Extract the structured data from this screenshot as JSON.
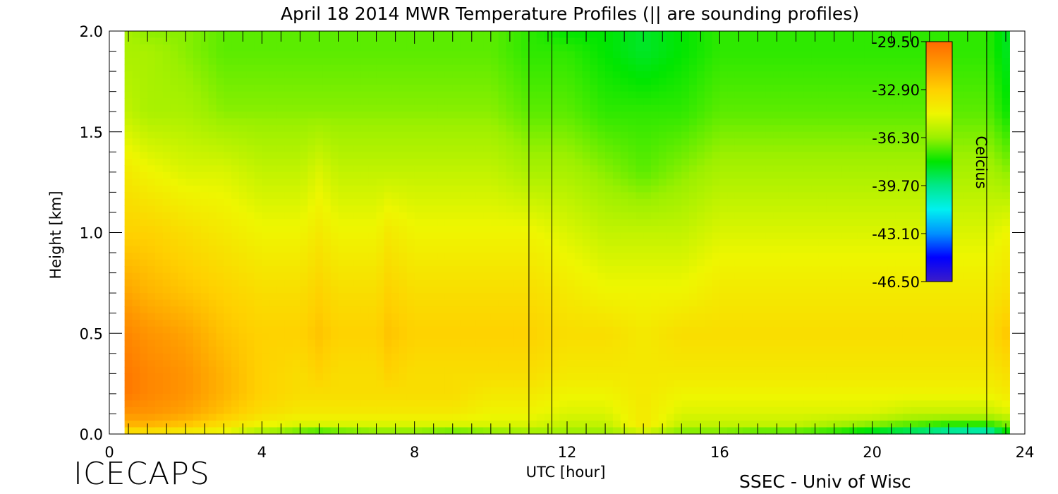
{
  "chart_data": {
    "type": "heatmap",
    "title": "April 18 2014 MWR Temperature Profiles (|| are sounding profiles)",
    "xlabel": "UTC [hour]",
    "ylabel": "Height [km]",
    "xlim": [
      0,
      24
    ],
    "ylim": [
      0,
      2
    ],
    "x_ticks": [
      0,
      4,
      8,
      12,
      16,
      20,
      24
    ],
    "y_ticks": [
      0.0,
      0.5,
      1.0,
      1.5,
      2.0
    ],
    "y_tick_labels": [
      "0.0",
      "0.5",
      "1.0",
      "1.5",
      "2.0"
    ],
    "data_x_range": [
      0.4,
      23.6
    ],
    "sounding_profiles_utc": [
      11.0,
      11.6,
      23.0
    ],
    "colorbar": {
      "label": "Celcius",
      "min": -46.5,
      "max": -29.5,
      "tick_labels": [
        "-29.50",
        "-32.90",
        "-36.30",
        "-39.70",
        "-43.10",
        "-46.50"
      ],
      "tick_values": [
        -29.5,
        -32.9,
        -36.3,
        -39.7,
        -43.1,
        -46.5
      ],
      "colors": [
        "#3c1cc8",
        "#0000ff",
        "#0090ff",
        "#00f0f0",
        "#00e88a",
        "#00e600",
        "#9bf000",
        "#eef600",
        "#ffd000",
        "#ff9a00",
        "#ff6a00"
      ]
    },
    "temperature_grid": {
      "x_utc": [
        0.4,
        1.0,
        2.0,
        3.0,
        4.0,
        5.0,
        5.5,
        6.0,
        7.0,
        7.3,
        8.0,
        9.0,
        10.0,
        11.0,
        12.0,
        13.0,
        14.0,
        15.0,
        16.0,
        17.0,
        18.0,
        19.0,
        20.0,
        21.0,
        22.0,
        23.0,
        23.6
      ],
      "heights_km": [
        0.0,
        0.05,
        0.1,
        0.2,
        0.3,
        0.5,
        0.7,
        1.0,
        1.3,
        1.6,
        1.9,
        2.0
      ],
      "values_celsius": [
        [
          -34.0,
          -34.0,
          -34.5,
          -35.0,
          -36.5,
          -37.5,
          -38.0,
          -37.5,
          -37.0,
          -37.0,
          -37.0,
          -37.5,
          -37.0,
          -36.5,
          -36.5,
          -36.5,
          -35.5,
          -37.0,
          -37.0,
          -37.5,
          -37.5,
          -38.0,
          -39.0,
          -40.0,
          -41.0,
          -41.5,
          -38.0
        ],
        [
          -32.0,
          -32.0,
          -32.5,
          -33.5,
          -34.5,
          -35.0,
          -35.0,
          -35.0,
          -35.0,
          -35.0,
          -35.0,
          -35.0,
          -35.0,
          -35.0,
          -35.5,
          -35.5,
          -34.0,
          -35.5,
          -35.5,
          -35.5,
          -35.5,
          -36.0,
          -36.5,
          -37.0,
          -37.5,
          -37.5,
          -36.5
        ],
        [
          -31.0,
          -31.0,
          -31.5,
          -32.5,
          -33.5,
          -34.0,
          -34.0,
          -34.0,
          -34.0,
          -34.0,
          -34.0,
          -34.0,
          -34.5,
          -34.5,
          -35.0,
          -35.0,
          -34.0,
          -35.0,
          -35.0,
          -35.0,
          -35.0,
          -35.0,
          -35.0,
          -35.5,
          -35.5,
          -35.5,
          -35.0
        ],
        [
          -30.0,
          -30.5,
          -31.0,
          -32.0,
          -33.0,
          -33.5,
          -33.5,
          -33.5,
          -33.5,
          -33.5,
          -33.5,
          -33.5,
          -34.0,
          -34.0,
          -34.5,
          -34.5,
          -34.0,
          -34.5,
          -34.5,
          -34.5,
          -34.5,
          -34.5,
          -34.5,
          -34.5,
          -34.5,
          -34.5,
          -34.0
        ],
        [
          -30.0,
          -30.5,
          -31.0,
          -32.0,
          -33.0,
          -33.5,
          -33.0,
          -33.5,
          -33.5,
          -33.0,
          -33.5,
          -33.5,
          -33.5,
          -33.5,
          -34.0,
          -34.0,
          -34.0,
          -34.0,
          -34.0,
          -34.0,
          -34.0,
          -34.0,
          -34.0,
          -34.0,
          -34.0,
          -34.0,
          -33.5
        ],
        [
          -30.5,
          -31.0,
          -31.5,
          -32.5,
          -33.0,
          -33.0,
          -32.5,
          -33.0,
          -33.0,
          -32.5,
          -33.0,
          -33.0,
          -33.0,
          -33.0,
          -33.5,
          -33.5,
          -34.0,
          -33.5,
          -33.5,
          -33.5,
          -33.5,
          -33.5,
          -33.5,
          -33.5,
          -33.5,
          -33.5,
          -32.5
        ],
        [
          -31.5,
          -32.0,
          -32.5,
          -33.0,
          -33.5,
          -33.5,
          -33.0,
          -33.5,
          -33.5,
          -33.0,
          -33.5,
          -33.5,
          -33.5,
          -33.5,
          -34.0,
          -34.5,
          -34.5,
          -34.5,
          -34.0,
          -34.0,
          -34.0,
          -34.0,
          -34.0,
          -34.0,
          -34.0,
          -34.0,
          -33.5
        ],
        [
          -33.0,
          -33.0,
          -33.5,
          -34.0,
          -34.5,
          -34.5,
          -34.0,
          -34.5,
          -34.5,
          -34.0,
          -34.5,
          -34.5,
          -34.5,
          -34.5,
          -35.0,
          -35.5,
          -35.5,
          -35.5,
          -35.0,
          -35.0,
          -35.0,
          -35.0,
          -35.0,
          -35.0,
          -35.0,
          -35.0,
          -34.5
        ],
        [
          -34.0,
          -34.5,
          -35.0,
          -35.0,
          -35.5,
          -35.5,
          -35.0,
          -35.5,
          -35.5,
          -35.5,
          -35.5,
          -35.5,
          -35.5,
          -36.0,
          -36.0,
          -36.5,
          -37.0,
          -36.5,
          -36.0,
          -36.0,
          -36.0,
          -36.0,
          -36.0,
          -36.0,
          -36.0,
          -36.0,
          -36.5
        ],
        [
          -35.5,
          -36.0,
          -36.0,
          -36.5,
          -36.5,
          -36.5,
          -36.5,
          -36.5,
          -36.5,
          -36.5,
          -36.5,
          -36.5,
          -36.5,
          -37.0,
          -37.0,
          -37.5,
          -37.5,
          -37.5,
          -37.0,
          -37.0,
          -37.0,
          -37.0,
          -37.0,
          -37.0,
          -37.0,
          -37.0,
          -38.0
        ],
        [
          -36.0,
          -36.0,
          -36.5,
          -37.0,
          -37.0,
          -37.0,
          -37.0,
          -37.0,
          -37.0,
          -37.0,
          -37.0,
          -37.0,
          -37.0,
          -37.5,
          -37.5,
          -38.0,
          -38.5,
          -38.0,
          -37.5,
          -37.5,
          -37.5,
          -37.5,
          -37.5,
          -37.5,
          -37.5,
          -37.5,
          -38.5
        ],
        [
          -36.0,
          -36.5,
          -36.5,
          -37.0,
          -37.0,
          -37.0,
          -37.0,
          -37.0,
          -37.0,
          -37.0,
          -37.0,
          -37.0,
          -37.0,
          -37.5,
          -38.0,
          -38.0,
          -38.5,
          -38.0,
          -37.5,
          -37.5,
          -37.5,
          -37.5,
          -37.5,
          -37.5,
          -37.5,
          -37.5,
          -38.5
        ]
      ]
    }
  },
  "footer": {
    "left_brand": "ICECAPS",
    "right_brand": "SSEC - Univ of Wisc"
  }
}
